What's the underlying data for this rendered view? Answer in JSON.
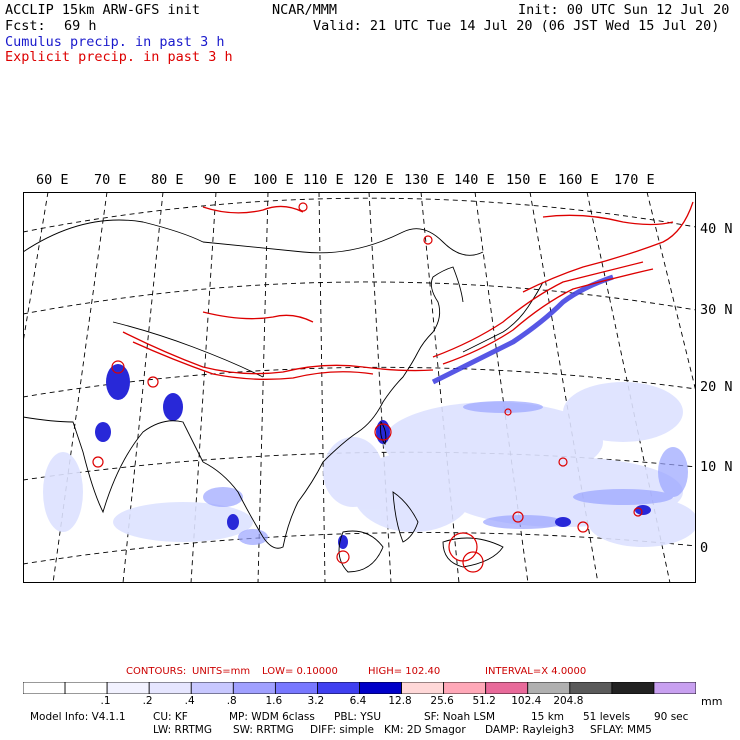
{
  "header": {
    "title": "ACCLIP 15km ARW-GFS init",
    "center": "NCAR/MMM",
    "init": "Init: 00 UTC Sun 12 Jul 20",
    "fcst_label": "Fcst:",
    "fcst_value": "69 h",
    "valid": "Valid: 21 UTC Tue 14 Jul 20 (06 JST Wed 15 Jul 20)",
    "legend_cumulus": "Cumulus precip. in past 3 h",
    "legend_explicit": "Explicit precip. in past 3 h",
    "cumulus_color": "#1a1acc",
    "explicit_color": "#dd0000"
  },
  "map": {
    "lon_labels": [
      "60 E",
      "70 E",
      "80 E",
      "90 E",
      "100 E",
      "110 E",
      "120 E",
      "130 E",
      "140 E",
      "150 E",
      "160 E",
      "170 E"
    ],
    "lat_labels": [
      "40 N",
      "30 N",
      "20 N",
      "10 N",
      "0"
    ],
    "grid": true
  },
  "contours": {
    "label": "CONTOURS:",
    "units": "UNITS=mm",
    "low": "LOW= 0.10000",
    "high": "HIGH= 102.40",
    "interval": "INTERVAL=X 4.0000"
  },
  "colorbar": {
    "colors": [
      "#ffffff",
      "#ffffff",
      "#f2f2ff",
      "#e6e6ff",
      "#c8c8ff",
      "#a0a0ff",
      "#7878ff",
      "#4040f0",
      "#0000c8",
      "#ffd8d8",
      "#ffa8b8",
      "#e86a9a",
      "#b0b0b0",
      "#5a5a5a",
      "#222222",
      "#c8a0f0"
    ],
    "labels": [
      ".1",
      ".2",
      ".4",
      ".8",
      "1.6",
      "3.2",
      "6.4",
      "12.8",
      "25.6",
      "51.2",
      "102.4",
      "204.8"
    ],
    "unit": "mm"
  },
  "model_info": {
    "line1": [
      "Model Info: V4.1.1",
      "CU: KF",
      "MP: WDM 6class",
      "PBL: YSU",
      "SF: Noah LSM",
      "15 km",
      "51 levels",
      "90 sec"
    ],
    "line2": [
      "LW: RRTMG",
      "SW: RRTMG",
      "DIFF: simple",
      "KM: 2D Smagor",
      "DAMP: Rayleigh3",
      "SFLAY: MM5"
    ]
  }
}
